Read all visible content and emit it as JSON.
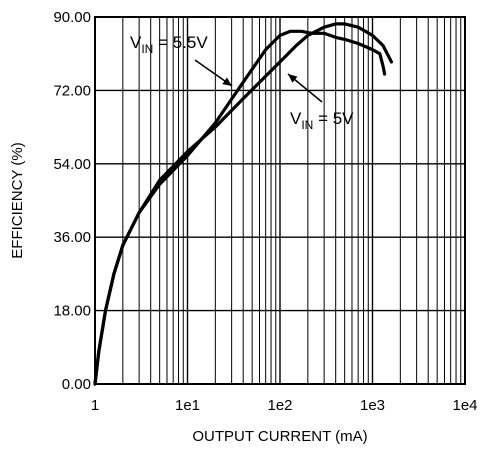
{
  "chart_data": {
    "type": "line",
    "title": "",
    "xlabel": "OUTPUT CURRENT (mA)",
    "ylabel": "EFFICIENCY (%)",
    "xscale": "log",
    "xlim": [
      1,
      10000
    ],
    "ylim": [
      0,
      90
    ],
    "x_tick_labels": [
      "1",
      "1e1",
      "1e2",
      "1e3",
      "1e4"
    ],
    "x_tick_values": [
      1,
      10,
      100,
      1000,
      10000
    ],
    "y_tick_labels": [
      "0.00",
      "18.00",
      "36.00",
      "54.00",
      "72.00",
      "90.00"
    ],
    "y_tick_values": [
      0,
      18,
      36,
      54,
      72,
      90
    ],
    "grid": true,
    "series": [
      {
        "name": "VIN = 5.5V",
        "x": [
          1,
          1.1,
          1.3,
          1.6,
          2,
          3,
          5,
          10,
          20,
          40,
          70,
          100,
          130,
          170,
          220,
          300,
          400,
          500,
          700,
          1000,
          1200,
          1300,
          1350
        ],
        "y": [
          0,
          8,
          18,
          27,
          34,
          42,
          49,
          56,
          64,
          74,
          82,
          85.5,
          86.5,
          86.5,
          86,
          86,
          85,
          84.5,
          83.5,
          82,
          81,
          78,
          76
        ]
      },
      {
        "name": "VIN = 5V",
        "x": [
          1,
          1.1,
          1.3,
          1.6,
          2,
          3,
          5,
          10,
          20,
          40,
          70,
          100,
          150,
          200,
          300,
          400,
          500,
          700,
          1000,
          1300,
          1600
        ],
        "y": [
          0,
          8,
          18,
          27,
          34,
          42,
          50,
          57,
          63,
          70,
          75.5,
          79,
          83,
          85.5,
          87.5,
          88.3,
          88.3,
          87.5,
          85.5,
          83,
          79
        ]
      }
    ],
    "annotations": [
      {
        "label": "V",
        "subscript": "IN",
        "suffix": " = 5.5V",
        "series": 0
      },
      {
        "label": "V",
        "subscript": "IN",
        "suffix": " = 5V",
        "series": 1
      }
    ]
  }
}
